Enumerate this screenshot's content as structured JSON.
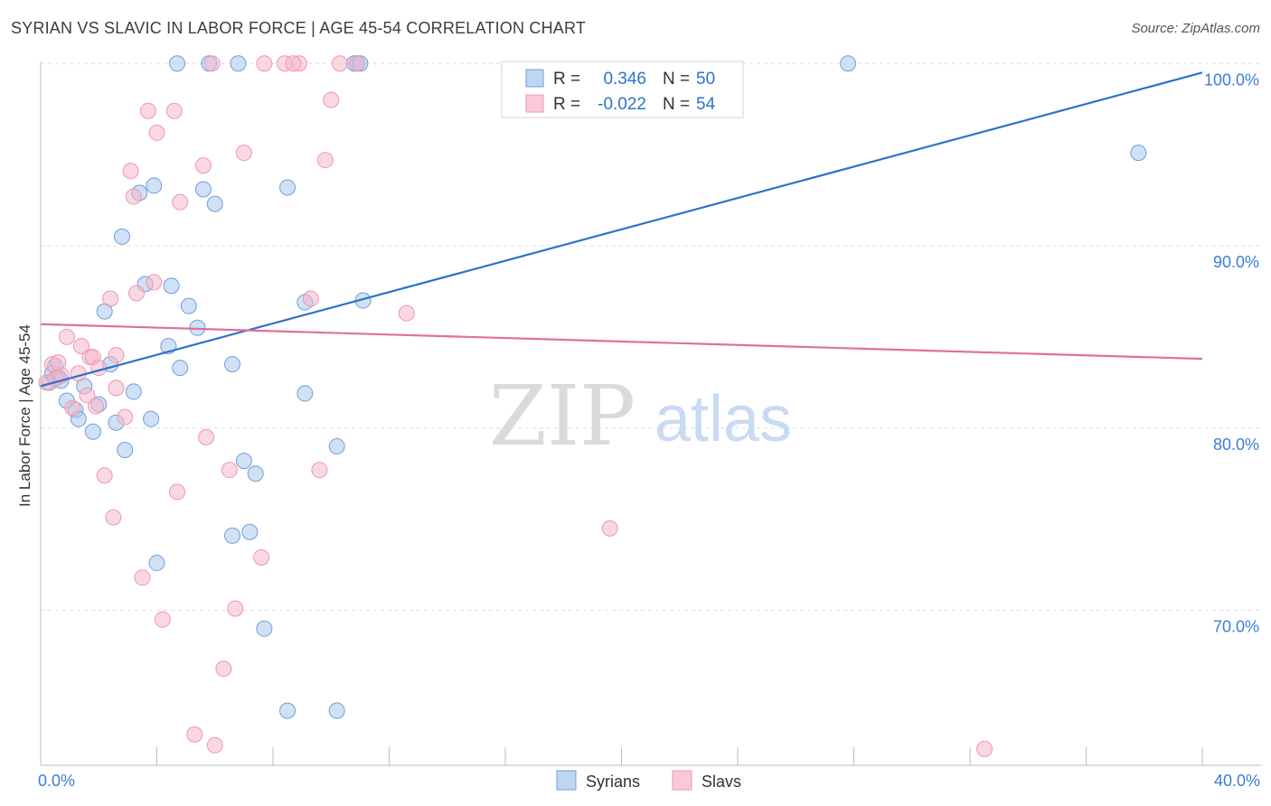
{
  "header": {
    "title": "SYRIAN VS SLAVIC IN LABOR FORCE | AGE 45-54 CORRELATION CHART",
    "source": "Source: ZipAtlas.com"
  },
  "chart_data": {
    "type": "scatter",
    "title": "SYRIAN VS SLAVIC IN LABOR FORCE | AGE 45-54 CORRELATION CHART",
    "xlabel": "",
    "ylabel": "In Labor Force | Age 45-54",
    "xlim": [
      0,
      40
    ],
    "ylim": [
      61.5,
      101.5
    ],
    "x_tick_labels": [
      {
        "value": 0,
        "label": "0.0%"
      },
      {
        "value": 40,
        "label": "40.0%"
      }
    ],
    "y_tick_labels": [
      {
        "value": 100,
        "label": "100.0%"
      },
      {
        "value": 90,
        "label": "90.0%"
      },
      {
        "value": 80,
        "label": "80.0%"
      },
      {
        "value": 70,
        "label": "70.0%"
      }
    ],
    "y_gridlines": [
      100,
      90,
      80,
      70
    ],
    "grid": true,
    "legend_position": "top-center",
    "watermark": {
      "zip": "ZIP",
      "atlas": "atlas"
    },
    "stats": [
      {
        "r_label": "R =",
        "r": "0.346",
        "n_label": "N =",
        "n": "50"
      },
      {
        "r_label": "R =",
        "r": "-0.022",
        "n_label": "N =",
        "n": "54"
      }
    ],
    "series": [
      {
        "name": "Syrians",
        "color": "#a9c8ee",
        "line_color": "#2f72c8",
        "trend": {
          "x": [
            0,
            40
          ],
          "y": [
            82.3,
            99.5
          ]
        },
        "points": [
          [
            0.3,
            82.5
          ],
          [
            0.4,
            83.0
          ],
          [
            0.6,
            82.8
          ],
          [
            0.5,
            83.4
          ],
          [
            0.7,
            82.6
          ],
          [
            0.9,
            81.5
          ],
          [
            1.2,
            81.0
          ],
          [
            1.3,
            80.5
          ],
          [
            1.5,
            82.3
          ],
          [
            1.8,
            79.8
          ],
          [
            2.0,
            81.3
          ],
          [
            2.2,
            86.4
          ],
          [
            2.4,
            83.5
          ],
          [
            2.6,
            80.3
          ],
          [
            2.8,
            90.5
          ],
          [
            2.9,
            78.8
          ],
          [
            3.2,
            82.0
          ],
          [
            3.4,
            92.9
          ],
          [
            3.6,
            87.9
          ],
          [
            3.8,
            80.5
          ],
          [
            3.9,
            93.3
          ],
          [
            4.0,
            72.6
          ],
          [
            4.4,
            84.5
          ],
          [
            4.5,
            87.8
          ],
          [
            4.8,
            83.3
          ],
          [
            5.1,
            86.7
          ],
          [
            5.4,
            85.5
          ],
          [
            5.6,
            93.1
          ],
          [
            6.0,
            92.3
          ],
          [
            6.6,
            74.1
          ],
          [
            6.6,
            83.5
          ],
          [
            7.0,
            78.2
          ],
          [
            7.2,
            74.3
          ],
          [
            7.4,
            77.5
          ],
          [
            7.7,
            69.0
          ],
          [
            8.5,
            93.2
          ],
          [
            8.5,
            64.5
          ],
          [
            9.1,
            81.9
          ],
          [
            9.1,
            86.9
          ],
          [
            10.2,
            79.0
          ],
          [
            10.2,
            64.5
          ],
          [
            10.8,
            100.0
          ],
          [
            10.9,
            100.0
          ],
          [
            11.0,
            100.0
          ],
          [
            11.1,
            87.0
          ],
          [
            4.7,
            100.0
          ],
          [
            5.8,
            100.0
          ],
          [
            6.8,
            100.0
          ],
          [
            27.8,
            100.0
          ],
          [
            37.8,
            95.1
          ]
        ]
      },
      {
        "name": "Slavs",
        "color": "#f6b8cb",
        "line_color": "#e0709a",
        "trend": {
          "x": [
            0,
            40
          ],
          "y": [
            85.7,
            83.8
          ]
        },
        "points": [
          [
            0.2,
            82.5
          ],
          [
            0.4,
            83.5
          ],
          [
            0.5,
            82.7
          ],
          [
            0.7,
            82.9
          ],
          [
            0.9,
            85.0
          ],
          [
            1.1,
            81.1
          ],
          [
            1.3,
            83.0
          ],
          [
            1.4,
            84.5
          ],
          [
            1.6,
            81.8
          ],
          [
            1.7,
            83.9
          ],
          [
            1.8,
            83.9
          ],
          [
            2.0,
            83.3
          ],
          [
            2.2,
            77.4
          ],
          [
            2.4,
            87.1
          ],
          [
            2.5,
            75.1
          ],
          [
            2.6,
            82.2
          ],
          [
            2.9,
            80.6
          ],
          [
            3.1,
            94.1
          ],
          [
            3.2,
            92.7
          ],
          [
            3.3,
            87.4
          ],
          [
            3.5,
            71.8
          ],
          [
            3.7,
            97.4
          ],
          [
            3.9,
            88.0
          ],
          [
            4.0,
            96.2
          ],
          [
            4.2,
            69.5
          ],
          [
            4.6,
            97.4
          ],
          [
            4.7,
            76.5
          ],
          [
            4.8,
            92.4
          ],
          [
            5.3,
            63.2
          ],
          [
            5.6,
            94.4
          ],
          [
            5.7,
            79.5
          ],
          [
            6.0,
            62.6
          ],
          [
            6.3,
            66.8
          ],
          [
            6.5,
            77.7
          ],
          [
            6.7,
            70.1
          ],
          [
            7.0,
            95.1
          ],
          [
            7.6,
            72.9
          ],
          [
            8.9,
            100.0
          ],
          [
            9.3,
            87.1
          ],
          [
            9.6,
            77.7
          ],
          [
            9.8,
            94.7
          ],
          [
            10.0,
            98.0
          ],
          [
            10.3,
            100.0
          ],
          [
            10.9,
            100.0
          ],
          [
            12.6,
            86.3
          ],
          [
            19.6,
            74.5
          ],
          [
            32.5,
            62.4
          ],
          [
            5.9,
            100.0
          ],
          [
            7.7,
            100.0
          ],
          [
            8.4,
            100.0
          ],
          [
            8.7,
            100.0
          ],
          [
            2.6,
            84.0
          ],
          [
            1.9,
            81.2
          ],
          [
            0.6,
            83.6
          ]
        ]
      }
    ]
  }
}
